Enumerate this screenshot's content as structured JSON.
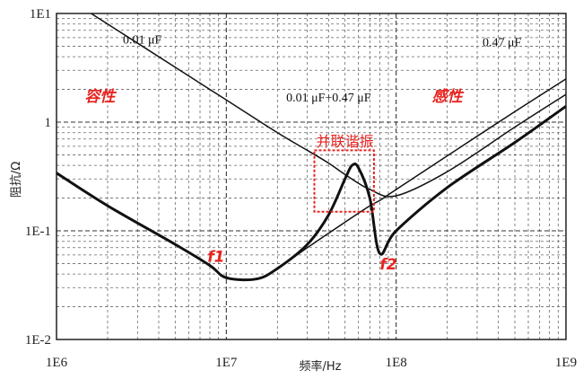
{
  "chart_data": {
    "type": "line",
    "title": "",
    "xlabel": "频率/Hz",
    "ylabel": "阻抗/Ω",
    "x_scale": "log",
    "y_scale": "log",
    "xlim": [
      1000000,
      1000000000
    ],
    "ylim": [
      0.01,
      10
    ],
    "grid": true,
    "x_ticks": [
      "1E6",
      "1E7",
      "1E8",
      "1E9"
    ],
    "y_ticks": [
      "1E-2",
      "1E-1",
      "1",
      "1E1"
    ],
    "series": [
      {
        "name": "0.01 μF",
        "style": "thin",
        "x": [
          1000000,
          2000000,
          5000000,
          10000000,
          20000000,
          30000000,
          40000000,
          50000000,
          70000000,
          100000000,
          200000000,
          500000000,
          1000000000
        ],
        "y": [
          16,
          8,
          3.2,
          1.6,
          0.8,
          0.55,
          0.42,
          0.33,
          0.24,
          0.21,
          0.35,
          0.9,
          1.8
        ]
      },
      {
        "name": "0.47 μF",
        "style": "thin",
        "x": [
          1000000,
          2000000,
          5000000,
          8000000,
          10000000,
          15000000,
          20000000,
          30000000,
          50000000,
          70000000,
          80000000,
          100000000,
          200000000,
          500000000,
          1000000000
        ],
        "y": [
          0.34,
          0.17,
          0.075,
          0.048,
          0.037,
          0.036,
          0.045,
          0.07,
          0.12,
          0.17,
          0.19,
          0.24,
          0.49,
          1.25,
          2.5
        ]
      },
      {
        "name": "0.01 μF+0.47 μF",
        "style": "thick",
        "x": [
          1000000,
          2000000,
          5000000,
          8000000,
          10000000,
          15000000,
          20000000,
          30000000,
          40000000,
          50000000,
          55000000,
          60000000,
          70000000,
          80000000,
          100000000,
          200000000,
          500000000,
          1000000000
        ],
        "y": [
          0.34,
          0.17,
          0.075,
          0.048,
          0.037,
          0.036,
          0.045,
          0.075,
          0.14,
          0.3,
          0.4,
          0.38,
          0.2,
          0.062,
          0.1,
          0.25,
          0.65,
          1.4
        ]
      }
    ],
    "annotations": [
      {
        "text": "0.01 μF",
        "color": "#111111",
        "x": 3200000,
        "y": 5.3
      },
      {
        "text": "0.47 μF",
        "color": "#111111",
        "x": 420000000,
        "y": 5.0
      },
      {
        "text": "0.01 μF+0.47 μF",
        "color": "#111111",
        "x": 40000000,
        "y": 1.55
      },
      {
        "text": "容性",
        "color": "#e8231f",
        "x": 1800000,
        "y": 1.55
      },
      {
        "text": "感性",
        "color": "#e8231f",
        "x": 200000000,
        "y": 1.55
      },
      {
        "text": "并联谐振",
        "color": "#e8231f",
        "x": 50000000,
        "y": 0.6
      },
      {
        "text": "f1",
        "color": "#e8231f",
        "x": 8700000,
        "y": 0.052
      },
      {
        "text": "f2",
        "color": "#e8231f",
        "x": 90000000,
        "y": 0.044
      }
    ],
    "highlight_box": {
      "x": [
        33000000,
        74000000
      ],
      "y": [
        0.15,
        0.55
      ],
      "color": "#e8231f"
    }
  }
}
